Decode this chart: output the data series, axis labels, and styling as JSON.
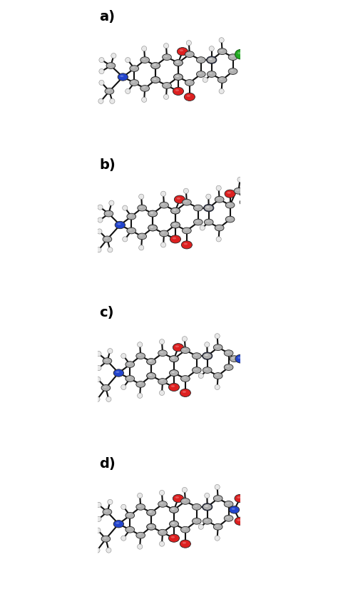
{
  "figure_width": 4.74,
  "figure_height": 8.47,
  "dpi": 100,
  "background_color": "#ffffff",
  "labels": [
    "a)",
    "b)",
    "c)",
    "d)"
  ],
  "label_fontsize": 14,
  "label_fontweight": "bold",
  "C_color": "#b0b0b0",
  "H_color": "#e8e8e8",
  "N_color": "#2244cc",
  "O_color": "#dd2020",
  "Cl_color": "#22aa22",
  "bond_color": "#111111",
  "bond_lw": 1.5
}
